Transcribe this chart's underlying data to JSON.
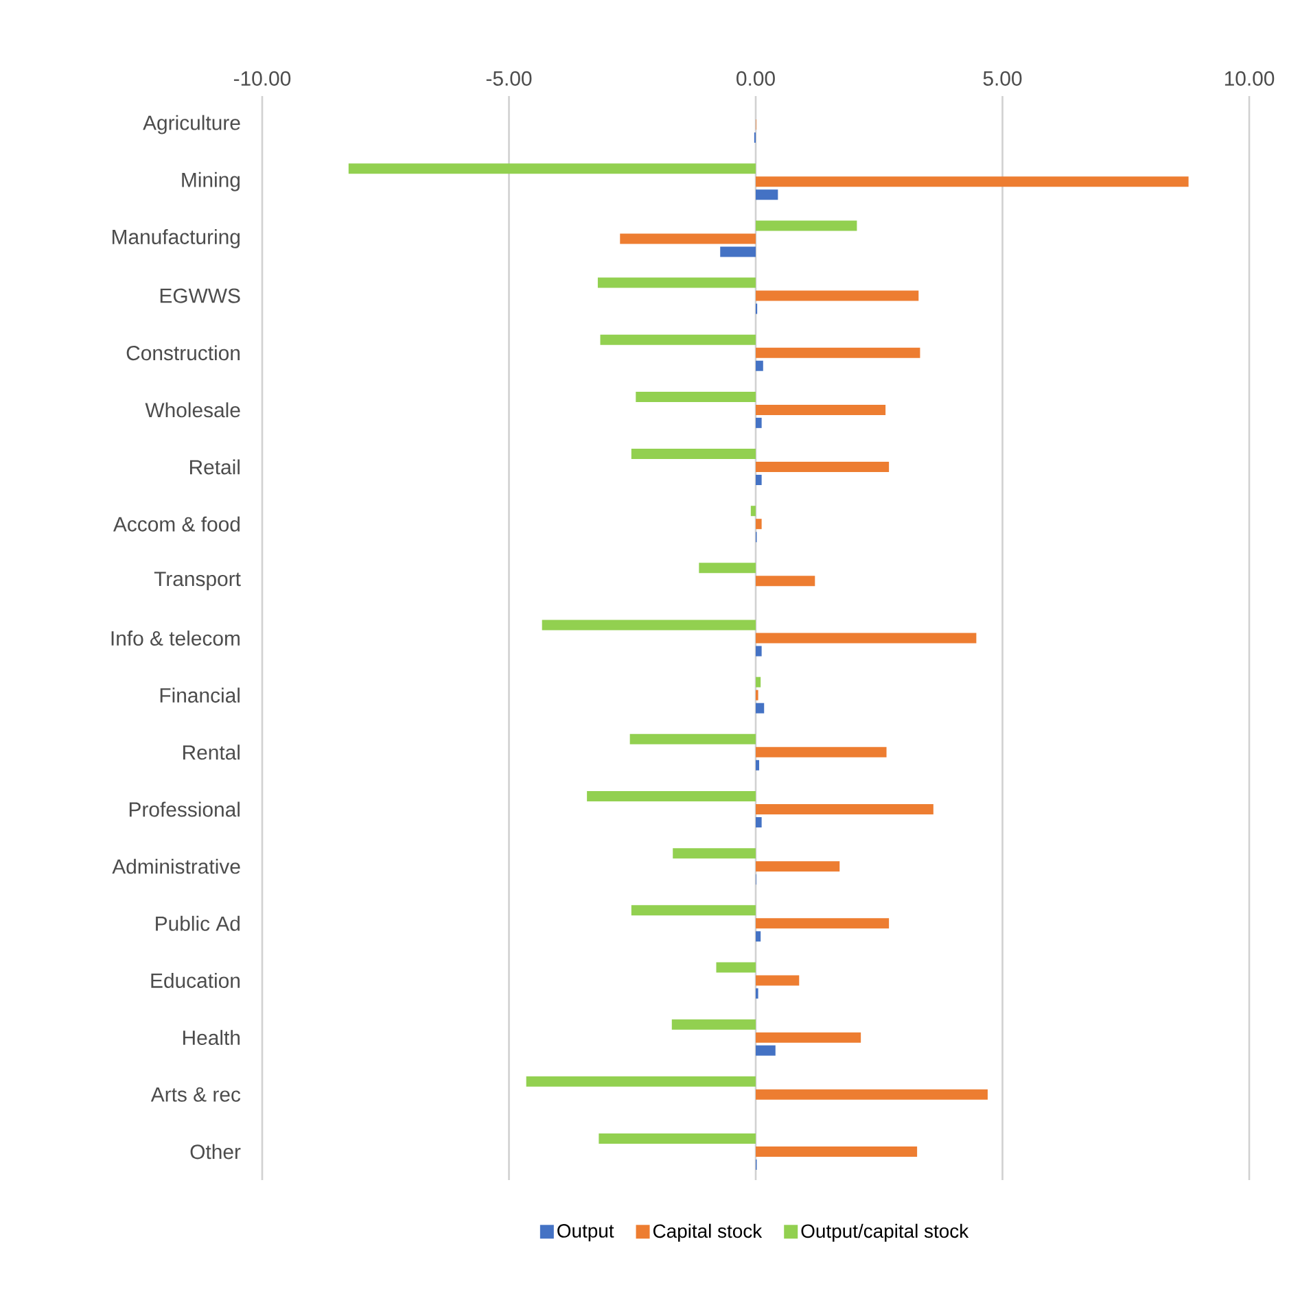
{
  "chart_data": {
    "type": "bar",
    "orientation": "horizontal",
    "categories": [
      "Agriculture",
      "Mining",
      "Manufacturing",
      "EGWWS",
      "Construction",
      "Wholesale",
      "Retail",
      "Accom & food",
      "Transport",
      "Info & telecom",
      "Financial",
      "Rental",
      "Professional",
      "Administrative",
      "Public Ad",
      "Education",
      "Health",
      "Arts & rec",
      "Other"
    ],
    "series": [
      {
        "name": "Output",
        "color": "#4472c4",
        "values": [
          -0.03,
          0.45,
          -0.72,
          0.03,
          0.15,
          0.12,
          0.12,
          0.02,
          0.0,
          0.12,
          0.17,
          0.07,
          0.12,
          0.01,
          0.1,
          0.05,
          0.4,
          0.0,
          0.02
        ]
      },
      {
        "name": "Capital stock",
        "color": "#ed7d31",
        "values": [
          0.01,
          8.77,
          -2.75,
          3.3,
          3.33,
          2.63,
          2.7,
          0.12,
          1.2,
          4.47,
          0.05,
          2.65,
          3.6,
          1.7,
          2.7,
          0.88,
          2.13,
          4.7,
          3.27
        ]
      },
      {
        "name": "Output/capital stock",
        "color": "#92d050",
        "values": [
          0.0,
          -8.25,
          2.05,
          -3.2,
          -3.15,
          -2.43,
          -2.52,
          -0.1,
          -1.15,
          -4.33,
          0.1,
          -2.55,
          -3.42,
          -1.68,
          -2.52,
          -0.8,
          -1.7,
          -4.65,
          -3.18
        ]
      }
    ],
    "xlim": [
      -10,
      10
    ],
    "xticks": [
      {
        "value": -10,
        "label": "-10.00"
      },
      {
        "value": -5,
        "label": "-5.00"
      },
      {
        "value": 0,
        "label": "0.00"
      },
      {
        "value": 5,
        "label": "5.00"
      },
      {
        "value": 10,
        "label": "10.00"
      }
    ],
    "grid": "x",
    "legend": "bottom"
  }
}
